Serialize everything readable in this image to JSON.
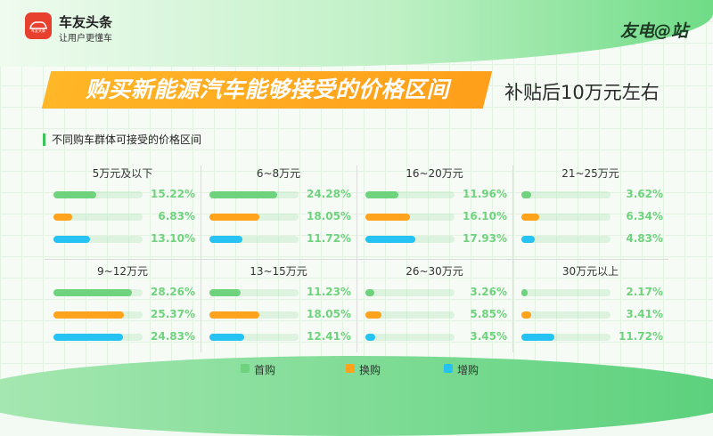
{
  "header": {
    "logo_title": "车友头条",
    "logo_subtitle": "让用户更懂车",
    "logo_badge_text": "车友头条",
    "brand_right": "友电@站"
  },
  "headline": {
    "title": "购买新能源汽车能够接受的价格区间",
    "side_note": "补贴后10万元左右"
  },
  "section_title": "不同购车群体可接受的价格区间",
  "colors": {
    "first_purchase": "#6fd37e",
    "replacement": "#ffa21c",
    "additional": "#27c2f4"
  },
  "chart_data": {
    "type": "bar",
    "series_names": [
      "首购",
      "换购",
      "增购"
    ],
    "value_unit": "%",
    "panels": [
      {
        "title": "5万元及以下",
        "values": [
          15.22,
          6.83,
          13.1
        ],
        "labels": [
          "15.22%",
          "6.83%",
          "13.10%"
        ]
      },
      {
        "title": "6~8万元",
        "values": [
          24.28,
          18.05,
          11.72
        ],
        "labels": [
          "24.28%",
          "18.05%",
          "11.72%"
        ]
      },
      {
        "title": "16~20万元",
        "values": [
          11.96,
          16.1,
          17.93
        ],
        "labels": [
          "11.96%",
          "16.10%",
          "17.93%"
        ]
      },
      {
        "title": "21~25万元",
        "values": [
          3.62,
          6.34,
          4.83
        ],
        "labels": [
          "3.62%",
          "6.34%",
          "4.83%"
        ]
      },
      {
        "title": "9~12万元",
        "values": [
          28.26,
          25.37,
          24.83
        ],
        "labels": [
          "28.26%",
          "25.37%",
          "24.83%"
        ]
      },
      {
        "title": "13~15万元",
        "values": [
          11.23,
          18.05,
          12.41
        ],
        "labels": [
          "11.23%",
          "18.05%",
          "12.41%"
        ]
      },
      {
        "title": "26~30万元",
        "values": [
          3.26,
          5.85,
          3.45
        ],
        "labels": [
          "3.26%",
          "5.85%",
          "3.45%"
        ]
      },
      {
        "title": "30万元以上",
        "values": [
          2.17,
          3.41,
          11.72
        ],
        "labels": [
          "2.17%",
          "3.41%",
          "11.72%"
        ]
      }
    ],
    "legend": [
      "首购",
      "换购",
      "增购"
    ],
    "legend_position": "bottom-center"
  }
}
